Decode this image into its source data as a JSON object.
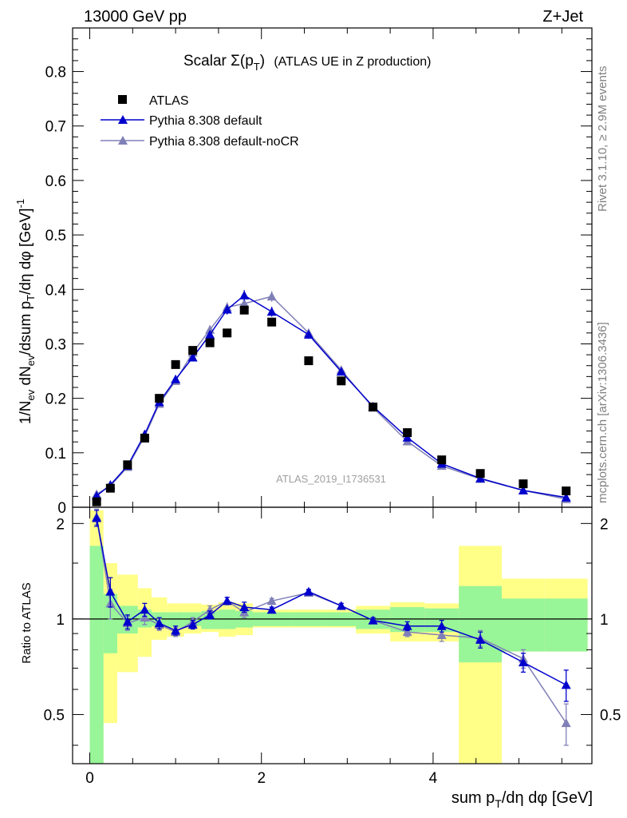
{
  "header": {
    "left": "13000 GeV pp",
    "right": "Z+Jet"
  },
  "side_labels": {
    "rivet": "Rivet 3.1.10, ≥ 2.9M events",
    "mcplots": "mcplots.cern.ch [arXiv:1306.3436]"
  },
  "chart_data": {
    "type": "scatter",
    "title_main": "Scalar Σ(p",
    "title_sub": "T",
    "title_close": ")",
    "title_rest": "(ATLAS UE in Z production)",
    "watermark": "ATLAS_2019_I1736531",
    "xlabel": "sum p_T/dη dφ [GeV]",
    "ylabel": "1/N_ev dN_ev/dsum p_T/dη dφ [GeV]^-1",
    "ratio_ylabel": "Ratio to ATLAS",
    "xlim": [
      -0.2,
      5.85
    ],
    "ylim": [
      0,
      0.88
    ],
    "ratio_ylim": [
      0.35,
      2.25
    ],
    "x_ticks": [
      "0",
      "2",
      "4"
    ],
    "y_ticks": [
      "0",
      "0.1",
      "0.2",
      "0.3",
      "0.4",
      "0.5",
      "0.6",
      "0.7",
      "0.8"
    ],
    "ratio_ticks": [
      "0.5",
      "1",
      "2"
    ],
    "legend": [
      "ATLAS",
      "Pythia 8.308 default",
      "Pythia 8.308 default-noCR"
    ],
    "colors": {
      "data": "#000000",
      "default": "#0000cc",
      "nocr": "#8080b8",
      "band_inner": "#98f598",
      "band_outer": "#ffff88"
    },
    "bins": [
      0.0,
      0.16,
      0.32,
      0.56,
      0.72,
      0.9,
      1.1,
      1.3,
      1.5,
      1.7,
      1.9,
      2.35,
      2.75,
      3.1,
      3.5,
      3.9,
      4.3,
      4.8,
      5.3,
      5.8
    ],
    "x": [
      0.08,
      0.24,
      0.44,
      0.64,
      0.81,
      1.0,
      1.2,
      1.4,
      1.6,
      1.8,
      2.12,
      2.55,
      2.93,
      3.3,
      3.7,
      4.1,
      4.55,
      5.05,
      5.55
    ],
    "atlas": [
      0.01,
      0.035,
      0.078,
      0.127,
      0.2,
      0.262,
      0.288,
      0.302,
      0.32,
      0.362,
      0.34,
      0.269,
      0.232,
      0.184,
      0.137,
      0.087,
      0.062,
      0.043,
      0.03
    ],
    "series": [
      {
        "name": "Pythia 8.308 default",
        "values": [
          0.021,
          0.041,
          0.076,
          0.134,
          0.193,
          0.235,
          0.275,
          0.317,
          0.363,
          0.389,
          0.359,
          0.317,
          0.249,
          0.185,
          0.128,
          0.08,
          0.053,
          0.031,
          0.018
        ],
        "ratio": [
          2.08,
          1.22,
          0.98,
          1.07,
          0.97,
          0.92,
          0.96,
          1.03,
          1.14,
          1.09,
          1.07,
          1.22,
          1.1,
          0.99,
          0.95,
          0.95,
          0.86,
          0.73,
          0.62
        ],
        "ratio_err": [
          0.12,
          0.13,
          0.05,
          0.05,
          0.04,
          0.03,
          0.03,
          0.03,
          0.03,
          0.04,
          0.02,
          0.02,
          0.02,
          0.02,
          0.03,
          0.04,
          0.05,
          0.05,
          0.07
        ]
      },
      {
        "name": "Pythia 8.308 default-noCR",
        "values": [
          0.024,
          0.039,
          0.074,
          0.13,
          0.19,
          0.232,
          0.284,
          0.326,
          0.367,
          0.374,
          0.387,
          0.32,
          0.252,
          0.183,
          0.121,
          0.076,
          0.052,
          0.031,
          0.015
        ],
        "ratio": [
          2.1,
          1.12,
          0.97,
          1.01,
          0.96,
          0.91,
          0.98,
          1.07,
          1.14,
          1.05,
          1.14,
          1.21,
          1.1,
          0.99,
          0.91,
          0.89,
          0.87,
          0.75,
          0.47
        ],
        "ratio_err": [
          0.12,
          0.12,
          0.05,
          0.05,
          0.04,
          0.03,
          0.03,
          0.03,
          0.03,
          0.04,
          0.02,
          0.02,
          0.02,
          0.02,
          0.03,
          0.04,
          0.05,
          0.05,
          0.07
        ]
      }
    ],
    "band_inner": [
      [
        0.35,
        1.7
      ],
      [
        0.78,
        1.2
      ],
      [
        0.9,
        1.1
      ],
      [
        0.94,
        1.07
      ],
      [
        0.95,
        1.05
      ],
      [
        0.94,
        1.05
      ],
      [
        0.95,
        1.05
      ],
      [
        0.93,
        1.06
      ],
      [
        0.93,
        1.07
      ],
      [
        0.94,
        1.06
      ],
      [
        0.95,
        1.05
      ],
      [
        0.95,
        1.05
      ],
      [
        0.95,
        1.05
      ],
      [
        0.93,
        1.07
      ],
      [
        0.91,
        1.09
      ],
      [
        0.91,
        1.08
      ],
      [
        0.73,
        1.27
      ],
      [
        0.79,
        1.16
      ],
      [
        0.79,
        1.16
      ]
    ],
    "band_outer": [
      [
        0.35,
        2.2
      ],
      [
        0.47,
        1.5
      ],
      [
        0.68,
        1.38
      ],
      [
        0.76,
        1.25
      ],
      [
        0.86,
        1.17
      ],
      [
        0.88,
        1.12
      ],
      [
        0.9,
        1.12
      ],
      [
        0.91,
        1.11
      ],
      [
        0.88,
        1.13
      ],
      [
        0.89,
        1.12
      ],
      [
        0.94,
        1.07
      ],
      [
        0.94,
        1.07
      ],
      [
        0.94,
        1.07
      ],
      [
        0.9,
        1.1
      ],
      [
        0.85,
        1.13
      ],
      [
        0.85,
        1.12
      ],
      [
        0.35,
        1.7
      ],
      [
        0.79,
        1.34
      ],
      [
        0.79,
        1.34
      ]
    ]
  }
}
